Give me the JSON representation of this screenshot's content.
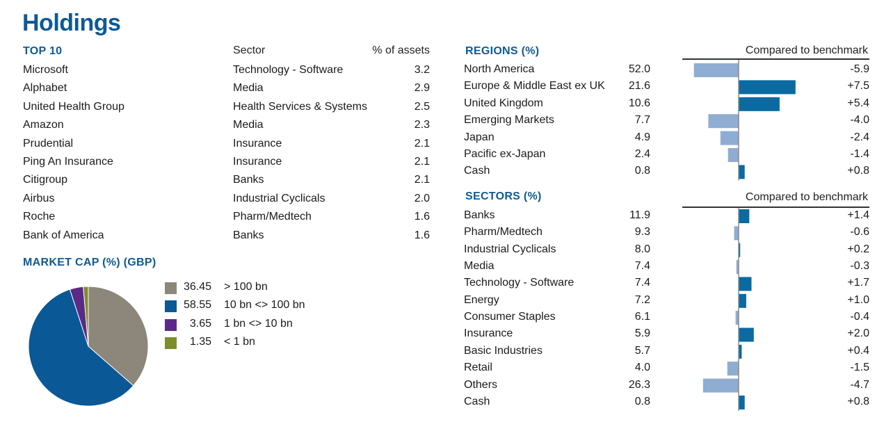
{
  "title": "Holdings",
  "top10": {
    "heading": "TOP 10",
    "sector_header": "Sector",
    "assets_header": "% of assets",
    "rows": [
      {
        "name": "Microsoft",
        "sector": "Technology - Software",
        "pct": "3.2"
      },
      {
        "name": "Alphabet",
        "sector": "Media",
        "pct": "2.9"
      },
      {
        "name": "United Health Group",
        "sector": "Health Services & Systems",
        "pct": "2.5"
      },
      {
        "name": "Amazon",
        "sector": "Media",
        "pct": "2.3"
      },
      {
        "name": "Prudential",
        "sector": "Insurance",
        "pct": "2.1"
      },
      {
        "name": "Ping An Insurance",
        "sector": "Insurance",
        "pct": "2.1"
      },
      {
        "name": "Citigroup",
        "sector": "Banks",
        "pct": "2.1"
      },
      {
        "name": "Airbus",
        "sector": "Industrial Cyclicals",
        "pct": "2.0"
      },
      {
        "name": "Roche",
        "sector": "Pharm/Medtech",
        "pct": "1.6"
      },
      {
        "name": "Bank of America",
        "sector": "Banks",
        "pct": "1.6"
      }
    ]
  },
  "market_cap": {
    "heading": "MARKET CAP (%) (GBP)"
  },
  "regions": {
    "heading": "REGIONS (%)",
    "compare_header": "Compared to benchmark"
  },
  "sectors": {
    "heading": "SECTORS (%)",
    "compare_header": "Compared to benchmark"
  },
  "colors": {
    "accent": "#0e5a94",
    "positive_bar": "#0a6aa1",
    "negative_bar": "#8fadd2",
    "pie": [
      "#8c877a",
      "#0a5896",
      "#5b2a86",
      "#7f8c2e"
    ]
  },
  "chart_data": [
    {
      "type": "pie",
      "title": "MARKET CAP (%) (GBP)",
      "labels": [
        "> 100 bn",
        "10 bn <> 100 bn",
        "1 bn <> 10 bn",
        "< 1 bn"
      ],
      "values": [
        36.45,
        58.55,
        3.65,
        1.35
      ],
      "value_labels": [
        "36.45",
        "58.55",
        "3.65",
        "1.35"
      ],
      "legend": "right"
    },
    {
      "type": "bar",
      "title": "REGIONS (%)",
      "categories": [
        "North America",
        "Europe & Middle East ex UK",
        "United Kingdom",
        "Emerging Markets",
        "Japan",
        "Pacific ex-Japan",
        "Cash"
      ],
      "weights": [
        "52.0",
        "21.6",
        "10.6",
        "7.7",
        "4.9",
        "2.4",
        "0.8"
      ],
      "values": [
        -5.9,
        7.5,
        5.4,
        -4.0,
        -2.4,
        -1.4,
        0.8
      ],
      "value_labels": [
        "-5.9",
        "+7.5",
        "+5.4",
        "-4.0",
        "-2.4",
        "-1.4",
        "+0.8"
      ],
      "xlim": [
        -7.5,
        12
      ]
    },
    {
      "type": "bar",
      "title": "SECTORS (%)",
      "categories": [
        "Banks",
        "Pharm/Medtech",
        "Industrial Cyclicals",
        "Media",
        "Technology - Software",
        "Energy",
        "Consumer Staples",
        "Insurance",
        "Basic Industries",
        "Retail",
        "Others",
        "Cash"
      ],
      "weights": [
        "11.9",
        "9.3",
        "8.0",
        "7.4",
        "7.4",
        "7.2",
        "6.1",
        "5.9",
        "5.7",
        "4.0",
        "26.3",
        "0.8"
      ],
      "values": [
        1.4,
        -0.6,
        0.2,
        -0.3,
        1.7,
        1.0,
        -0.4,
        2.0,
        0.4,
        -1.5,
        -4.7,
        0.8
      ],
      "value_labels": [
        "+1.4",
        "-0.6",
        "+0.2",
        "-0.3",
        "+1.7",
        "+1.0",
        "-0.4",
        "+2.0",
        "+0.4",
        "-1.5",
        "-4.7",
        "+0.8"
      ],
      "xlim": [
        -4.7,
        12
      ]
    }
  ]
}
